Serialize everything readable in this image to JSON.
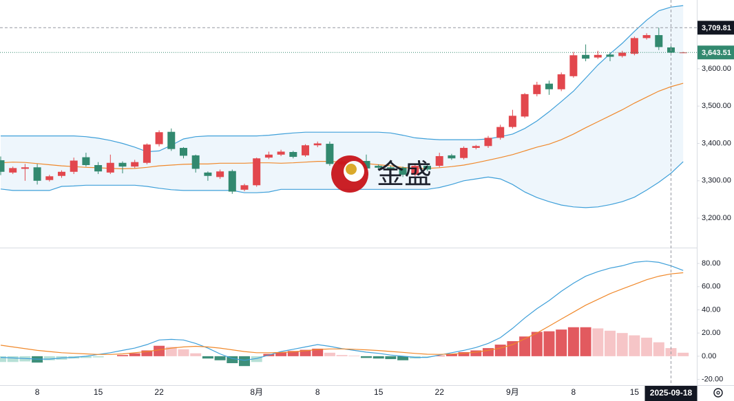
{
  "watermark": "金盛",
  "chart_data": [
    {
      "type": "candlestick",
      "categories": [
        null,
        null,
        null,
        "8",
        null,
        null,
        null,
        null,
        "15",
        null,
        null,
        null,
        null,
        "22",
        null,
        null,
        null,
        null,
        null,
        null,
        null,
        "8月",
        null,
        null,
        null,
        null,
        "8",
        null,
        null,
        null,
        null,
        "15",
        null,
        null,
        null,
        null,
        "22",
        null,
        null,
        null,
        null,
        null,
        "9月",
        null,
        null,
        null,
        null,
        "8",
        null,
        null,
        null,
        null,
        "15",
        null,
        null,
        "2025-09-18",
        null
      ],
      "open": [
        3355,
        3322,
        3332,
        3336,
        3302,
        3313,
        3324,
        3363,
        3342,
        3322,
        3348,
        3338,
        3348,
        3398,
        3431,
        3388,
        3368,
        3322,
        3310,
        3326,
        3276,
        3288,
        3362,
        3370,
        3377,
        3368,
        3395,
        3399,
        3344,
        3352,
        3353,
        3340,
        3336,
        3335,
        3316,
        3340,
        3340,
        3368,
        3361,
        3388,
        3393,
        3415,
        3444,
        3472,
        3532,
        3560,
        3545,
        3580,
        3637,
        3630,
        3638,
        3634,
        3640,
        3682,
        3690,
        3657,
        3643.51
      ],
      "high": [
        3365,
        3338,
        3345,
        3345,
        3316,
        3328,
        3362,
        3375,
        3350,
        3370,
        3352,
        3356,
        3400,
        3435,
        3440,
        3390,
        3370,
        3325,
        3330,
        3330,
        3292,
        3362,
        3378,
        3383,
        3380,
        3398,
        3405,
        3405,
        3358,
        3356,
        3370,
        3344,
        3340,
        3338,
        3345,
        3345,
        3375,
        3372,
        3392,
        3396,
        3420,
        3450,
        3490,
        3535,
        3565,
        3568,
        3590,
        3645,
        3665,
        3648,
        3644,
        3648,
        3686,
        3695,
        3710,
        3665,
        3645
      ],
      "low": [
        3315,
        3318,
        3300,
        3290,
        3298,
        3308,
        3318,
        3338,
        3318,
        3318,
        3320,
        3334,
        3344,
        3392,
        3380,
        3360,
        3322,
        3300,
        3305,
        3265,
        3272,
        3284,
        3358,
        3366,
        3360,
        3364,
        3390,
        3340,
        3340,
        3340,
        3328,
        3330,
        3328,
        3310,
        3312,
        3326,
        3336,
        3356,
        3357,
        3384,
        3388,
        3410,
        3440,
        3468,
        3526,
        3530,
        3540,
        3576,
        3620,
        3626,
        3620,
        3630,
        3636,
        3678,
        3650,
        3640,
        3642
      ],
      "close": [
        3324,
        3334,
        3336,
        3300,
        3312,
        3324,
        3354,
        3342,
        3325,
        3348,
        3338,
        3350,
        3397,
        3430,
        3385,
        3367,
        3332,
        3313,
        3325,
        3271,
        3288,
        3360,
        3370,
        3378,
        3364,
        3395,
        3400,
        3345,
        3352,
        3345,
        3333,
        3335,
        3333,
        3316,
        3340,
        3330,
        3366,
        3360,
        3388,
        3393,
        3415,
        3444,
        3474,
        3532,
        3557,
        3545,
        3585,
        3636,
        3627,
        3637,
        3632,
        3643,
        3682,
        3690,
        3658,
        3643,
        3643.51
      ],
      "up_color": "#e2474d",
      "down_color": "#32896f",
      "band_fill": "#eef6fc",
      "series": [
        {
          "color": "#3d9fd9",
          "values": [
            3420,
            3420,
            3420,
            3420,
            3420,
            3420,
            3420,
            3418,
            3414,
            3408,
            3400,
            3390,
            3378,
            3380,
            3395,
            3412,
            3418,
            3420,
            3420,
            3420,
            3420,
            3420,
            3422,
            3425,
            3428,
            3430,
            3430,
            3430,
            3430,
            3430,
            3430,
            3430,
            3428,
            3422,
            3415,
            3412,
            3410,
            3410,
            3410,
            3410,
            3412,
            3418,
            3425,
            3440,
            3460,
            3485,
            3512,
            3540,
            3575,
            3610,
            3640,
            3668,
            3700,
            3730,
            3755,
            3765,
            3769
          ]
        },
        {
          "color": "#f0882a",
          "values": [
            3348,
            3350,
            3349,
            3346,
            3343,
            3340,
            3338,
            3336,
            3335,
            3333,
            3332,
            3333,
            3336,
            3340,
            3342,
            3344,
            3345,
            3345,
            3347,
            3347,
            3347,
            3348,
            3348,
            3347,
            3348,
            3350,
            3352,
            3352,
            3350,
            3348,
            3346,
            3343,
            3340,
            3336,
            3333,
            3333,
            3335,
            3338,
            3342,
            3348,
            3355,
            3362,
            3370,
            3380,
            3390,
            3398,
            3410,
            3425,
            3442,
            3458,
            3474,
            3490,
            3508,
            3524,
            3540,
            3552,
            3561
          ]
        },
        {
          "color": "#3d9fd9",
          "values": [
            3278,
            3274,
            3274,
            3274,
            3274,
            3285,
            3286,
            3288,
            3288,
            3288,
            3288,
            3288,
            3285,
            3280,
            3276,
            3274,
            3274,
            3274,
            3274,
            3274,
            3268,
            3268,
            3270,
            3277,
            3277,
            3277,
            3277,
            3277,
            3277,
            3277,
            3277,
            3277,
            3277,
            3277,
            3277,
            3277,
            3282,
            3290,
            3300,
            3305,
            3310,
            3305,
            3290,
            3270,
            3255,
            3244,
            3235,
            3230,
            3228,
            3230,
            3236,
            3244,
            3256,
            3275,
            3296,
            3320,
            3351
          ]
        }
      ],
      "ylim": [
        3121,
        3784
      ],
      "yticks": [
        {
          "value": 3200,
          "label": "3,200.00"
        },
        {
          "value": 3300,
          "label": "3,300.00"
        },
        {
          "value": 3400,
          "label": "3,400.00"
        },
        {
          "value": 3500,
          "label": "3,500.00"
        },
        {
          "value": 3600,
          "label": "3,600.00"
        }
      ],
      "crosshair": {
        "value": 3709.81,
        "label": "3,709.81"
      },
      "last_price": {
        "value": 3643.51,
        "label": "3,643.51"
      }
    },
    {
      "type": "bar",
      "values": [
        -5,
        -5,
        -4.5,
        -5.5,
        -3.5,
        -3,
        -2,
        -1.5,
        -1,
        0,
        1,
        2.5,
        5,
        9,
        8,
        6,
        2.5,
        -2,
        -3.5,
        -6,
        -8.5,
        -5,
        2,
        3.5,
        4.5,
        5.5,
        6.5,
        3,
        1,
        0.5,
        -1.5,
        -2,
        -2.5,
        -3.5,
        -2,
        -0.5,
        0.5,
        2,
        3.5,
        5,
        7,
        10,
        13,
        17,
        21,
        21.5,
        23,
        25,
        25,
        24,
        22,
        20,
        18,
        16,
        12,
        7,
        3
      ],
      "colors": [
        "#e25a5f",
        "#f6c5c7",
        "#3d8f7a",
        "#b6e0d6"
      ],
      "series": [
        {
          "color": "#3d9fd9",
          "values": [
            -1,
            -1.5,
            -2,
            -2.5,
            -2.5,
            -1.5,
            -1,
            0,
            1.5,
            3,
            5,
            7,
            10,
            14,
            14.5,
            14,
            11,
            7,
            2,
            -2,
            -3.5,
            -2,
            1,
            4,
            6,
            8,
            10,
            8.5,
            6.5,
            5,
            3.5,
            2.5,
            1,
            0,
            -1,
            -1,
            1,
            3,
            5,
            7.5,
            11,
            16,
            24,
            33,
            41,
            48,
            56,
            63,
            69,
            73,
            76,
            78,
            81,
            82,
            81,
            78,
            74
          ]
        },
        {
          "color": "#f0882a",
          "values": [
            9.5,
            8,
            6.5,
            5,
            4,
            3,
            2.5,
            2,
            1.5,
            1.5,
            2,
            3,
            4,
            5.5,
            7,
            8,
            8.5,
            8,
            7,
            5.5,
            4,
            3,
            3,
            3.2,
            3.8,
            4.7,
            5.8,
            6.3,
            6.3,
            6,
            5.5,
            4.9,
            4.1,
            3.3,
            2.4,
            1.7,
            1.6,
            1.9,
            2.5,
            3.5,
            5,
            7,
            10,
            15,
            20,
            26,
            32,
            38,
            44,
            49,
            54,
            58,
            62,
            66,
            69,
            71,
            72
          ]
        }
      ],
      "ylim": [
        -25,
        92.5
      ],
      "yticks": [
        {
          "value": -20,
          "label": "-20.00"
        },
        {
          "value": 0,
          "label": "0.00"
        },
        {
          "value": 20,
          "label": "20.00"
        },
        {
          "value": 40,
          "label": "40.00"
        },
        {
          "value": 60,
          "label": "60.00"
        },
        {
          "value": 80,
          "label": "80.00"
        }
      ]
    }
  ]
}
